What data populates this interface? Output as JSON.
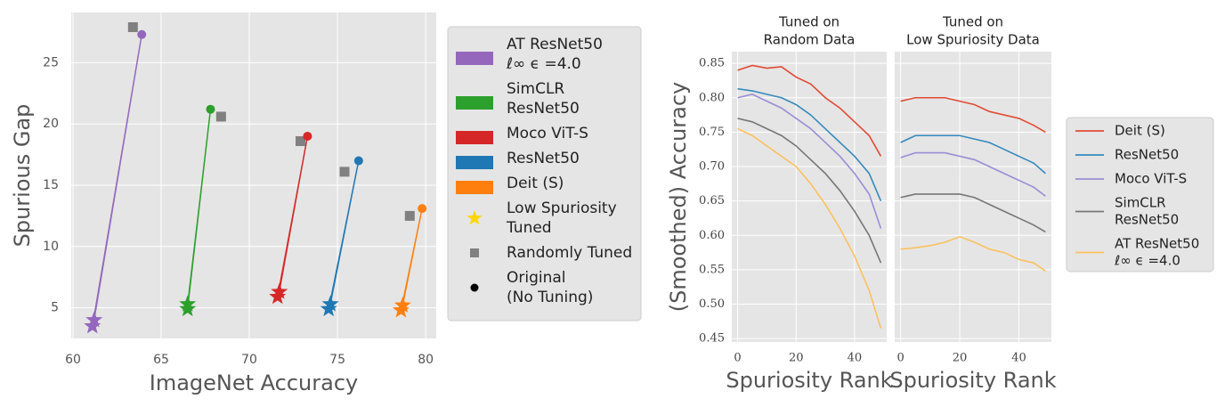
{
  "chart_data": [
    {
      "type": "scatter",
      "xlabel": "ImageNet Accuracy",
      "ylabel": "Spurious Gap",
      "xlim": [
        59.9,
        80.6
      ],
      "ylim": [
        2.5,
        29.1
      ],
      "xticks": [
        60,
        65,
        70,
        75,
        80
      ],
      "yticks": [
        5,
        10,
        15,
        20,
        25
      ],
      "grid": true,
      "series": [
        {
          "name": [
            "AT ResNet50",
            "ℓ∞ ϵ =4.0"
          ],
          "color": "#9467bd",
          "original": {
            "x": 63.9,
            "y": 27.3
          },
          "random": {
            "x": 63.4,
            "y": 27.9
          },
          "low": [
            {
              "x": 61.2,
              "y": 4.0
            },
            {
              "x": 61.1,
              "y": 3.5
            }
          ]
        },
        {
          "name": [
            "SimCLR",
            "ResNet50"
          ],
          "color": "#2ca02c",
          "original": {
            "x": 67.8,
            "y": 21.2
          },
          "random": {
            "x": 68.4,
            "y": 20.6
          },
          "low": [
            {
              "x": 66.5,
              "y": 5.3
            },
            {
              "x": 66.5,
              "y": 4.9
            }
          ]
        },
        {
          "name": [
            "Moco ViT-S"
          ],
          "color": "#d62728",
          "original": {
            "x": 73.3,
            "y": 19.0
          },
          "random": {
            "x": 72.9,
            "y": 18.6
          },
          "low": [
            {
              "x": 71.7,
              "y": 6.3
            },
            {
              "x": 71.6,
              "y": 5.9
            }
          ]
        },
        {
          "name": [
            "ResNet50"
          ],
          "color": "#1f77b4",
          "original": {
            "x": 76.2,
            "y": 17.0
          },
          "random": {
            "x": 75.4,
            "y": 16.1
          },
          "low": [
            {
              "x": 74.6,
              "y": 5.3
            },
            {
              "x": 74.5,
              "y": 4.9
            }
          ]
        },
        {
          "name": [
            "Deit (S)"
          ],
          "color": "#ff7f0e",
          "original": {
            "x": 79.8,
            "y": 13.1
          },
          "random": {
            "x": 79.1,
            "y": 12.5
          },
          "low": [
            {
              "x": 78.7,
              "y": 5.2
            },
            {
              "x": 78.6,
              "y": 4.8
            }
          ]
        }
      ],
      "markers": [
        {
          "label": [
            "Low Spuriosity",
            "Tuned"
          ],
          "shape": "star",
          "color": "#ffd700"
        },
        {
          "label": [
            "Randomly Tuned"
          ],
          "shape": "square",
          "color": "#808080"
        },
        {
          "label": [
            "Original",
            "(No Tuning)"
          ],
          "shape": "circle",
          "color": "#000000"
        }
      ]
    },
    {
      "type": "line",
      "ylabel": "(Smoothed) Accuracy",
      "x": [
        0,
        5,
        10,
        15,
        20,
        25,
        30,
        35,
        40,
        45,
        49
      ],
      "xlim": [
        -2,
        51
      ],
      "ylim": [
        0.445,
        0.867
      ],
      "xticks": [
        0,
        20,
        40
      ],
      "yticks": [
        0.45,
        {
          "value": 0.5,
          "label": "0.50"
        },
        0.55,
        {
          "value": 0.6,
          "label": "0.60"
        },
        0.65,
        {
          "value": 0.7,
          "label": "0.70"
        },
        0.75,
        {
          "value": 0.8,
          "label": "0.80"
        },
        0.85
      ],
      "grid": true,
      "panels": [
        {
          "title": [
            "Tuned on",
            "Random Data"
          ],
          "xlabel": "Spuriosity Rank"
        },
        {
          "title": [
            "Tuned on",
            "Low Spuriosity Data"
          ],
          "xlabel": "Spuriosity Rank"
        }
      ],
      "series": [
        {
          "name": [
            "Deit (S)"
          ],
          "color": "#e24a33",
          "values": [
            [
              0.84,
              0.847,
              0.843,
              0.845,
              0.83,
              0.82,
              0.8,
              0.785,
              0.765,
              0.745,
              0.715
            ],
            [
              0.795,
              0.8,
              0.8,
              0.8,
              0.795,
              0.79,
              0.78,
              0.775,
              0.77,
              0.76,
              0.75
            ]
          ]
        },
        {
          "name": [
            "ResNet50"
          ],
          "color": "#348abd",
          "values": [
            [
              0.813,
              0.81,
              0.805,
              0.8,
              0.79,
              0.775,
              0.755,
              0.735,
              0.715,
              0.69,
              0.65
            ],
            [
              0.735,
              0.745,
              0.745,
              0.745,
              0.745,
              0.74,
              0.735,
              0.725,
              0.715,
              0.705,
              0.69
            ]
          ]
        },
        {
          "name": [
            "Moco ViT-S"
          ],
          "color": "#988ed5",
          "values": [
            [
              0.8,
              0.805,
              0.795,
              0.785,
              0.77,
              0.755,
              0.735,
              0.715,
              0.69,
              0.66,
              0.61
            ],
            [
              0.713,
              0.72,
              0.72,
              0.72,
              0.715,
              0.71,
              0.7,
              0.69,
              0.68,
              0.67,
              0.657
            ]
          ]
        },
        {
          "name": [
            "SimCLR",
            "ResNet50"
          ],
          "color": "#777777",
          "values": [
            [
              0.77,
              0.765,
              0.755,
              0.745,
              0.73,
              0.71,
              0.69,
              0.665,
              0.635,
              0.6,
              0.56
            ],
            [
              0.655,
              0.66,
              0.66,
              0.66,
              0.66,
              0.655,
              0.645,
              0.635,
              0.625,
              0.615,
              0.605
            ]
          ]
        },
        {
          "name": [
            "AT ResNet50",
            "ℓ∞ ϵ =4.0"
          ],
          "color": "#fbc15e",
          "values": [
            [
              0.755,
              0.745,
              0.73,
              0.715,
              0.7,
              0.675,
              0.645,
              0.61,
              0.57,
              0.52,
              0.465
            ],
            [
              0.58,
              0.582,
              0.585,
              0.59,
              0.598,
              0.59,
              0.58,
              0.575,
              0.565,
              0.56,
              0.548
            ]
          ]
        }
      ]
    }
  ]
}
